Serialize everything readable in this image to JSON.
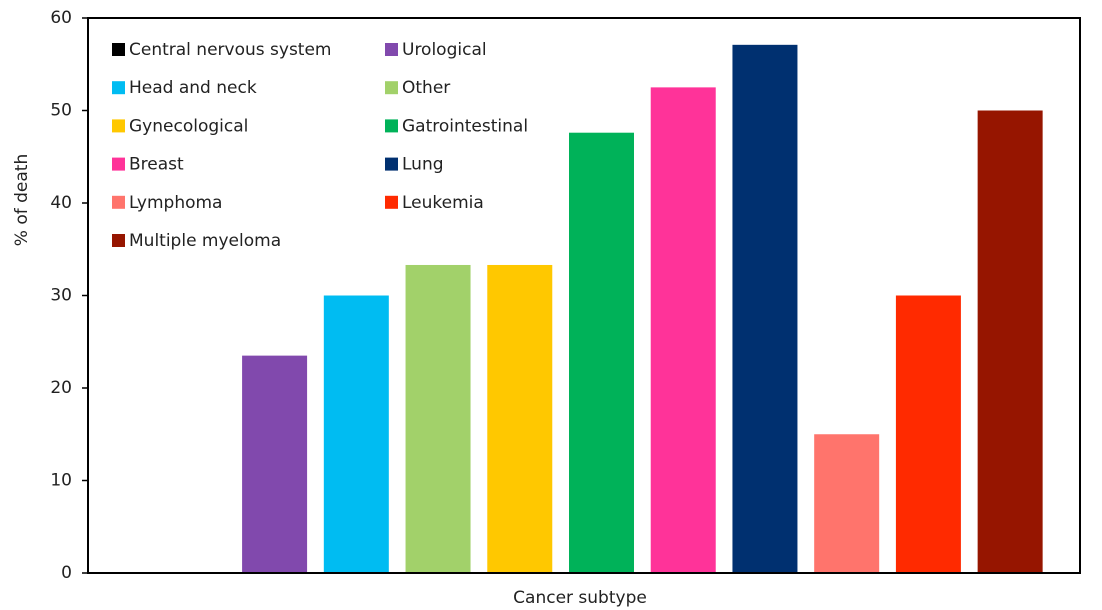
{
  "chart_data": {
    "type": "bar",
    "x_label": "Cancer subtype",
    "y_label": "% of death",
    "categories": [
      null
    ],
    "series": [
      {
        "name": "Central nervous system",
        "color": "#000000",
        "values": [
          0
        ]
      },
      {
        "name": "Urological",
        "color": "#8149ad",
        "values": [
          23.5
        ]
      },
      {
        "name": "Head and neck",
        "color": "#00bcf2",
        "values": [
          30
        ]
      },
      {
        "name": "Other",
        "color": "#a2d16a",
        "values": [
          33.3
        ]
      },
      {
        "name": "Gynecological",
        "color": "#ffc800",
        "values": [
          33.3
        ]
      },
      {
        "name": "Gatrointestinal",
        "color": "#00b259",
        "values": [
          47.6
        ]
      },
      {
        "name": "Breast",
        "color": "#ff3399",
        "values": [
          52.5
        ]
      },
      {
        "name": "Lung",
        "color": "#003070",
        "values": [
          57.1
        ]
      },
      {
        "name": "Lymphoma",
        "color": "#ff746c",
        "values": [
          15
        ]
      },
      {
        "name": "Leukemia",
        "color": "#ff2a00",
        "values": [
          30
        ]
      },
      {
        "name": "Multiple myeloma",
        "color": "#961500",
        "values": [
          50
        ]
      }
    ],
    "ylim": [
      0,
      60
    ],
    "yticks": [
      0,
      10,
      20,
      30,
      40,
      50,
      60
    ],
    "grid": false,
    "legend": "top-left"
  }
}
